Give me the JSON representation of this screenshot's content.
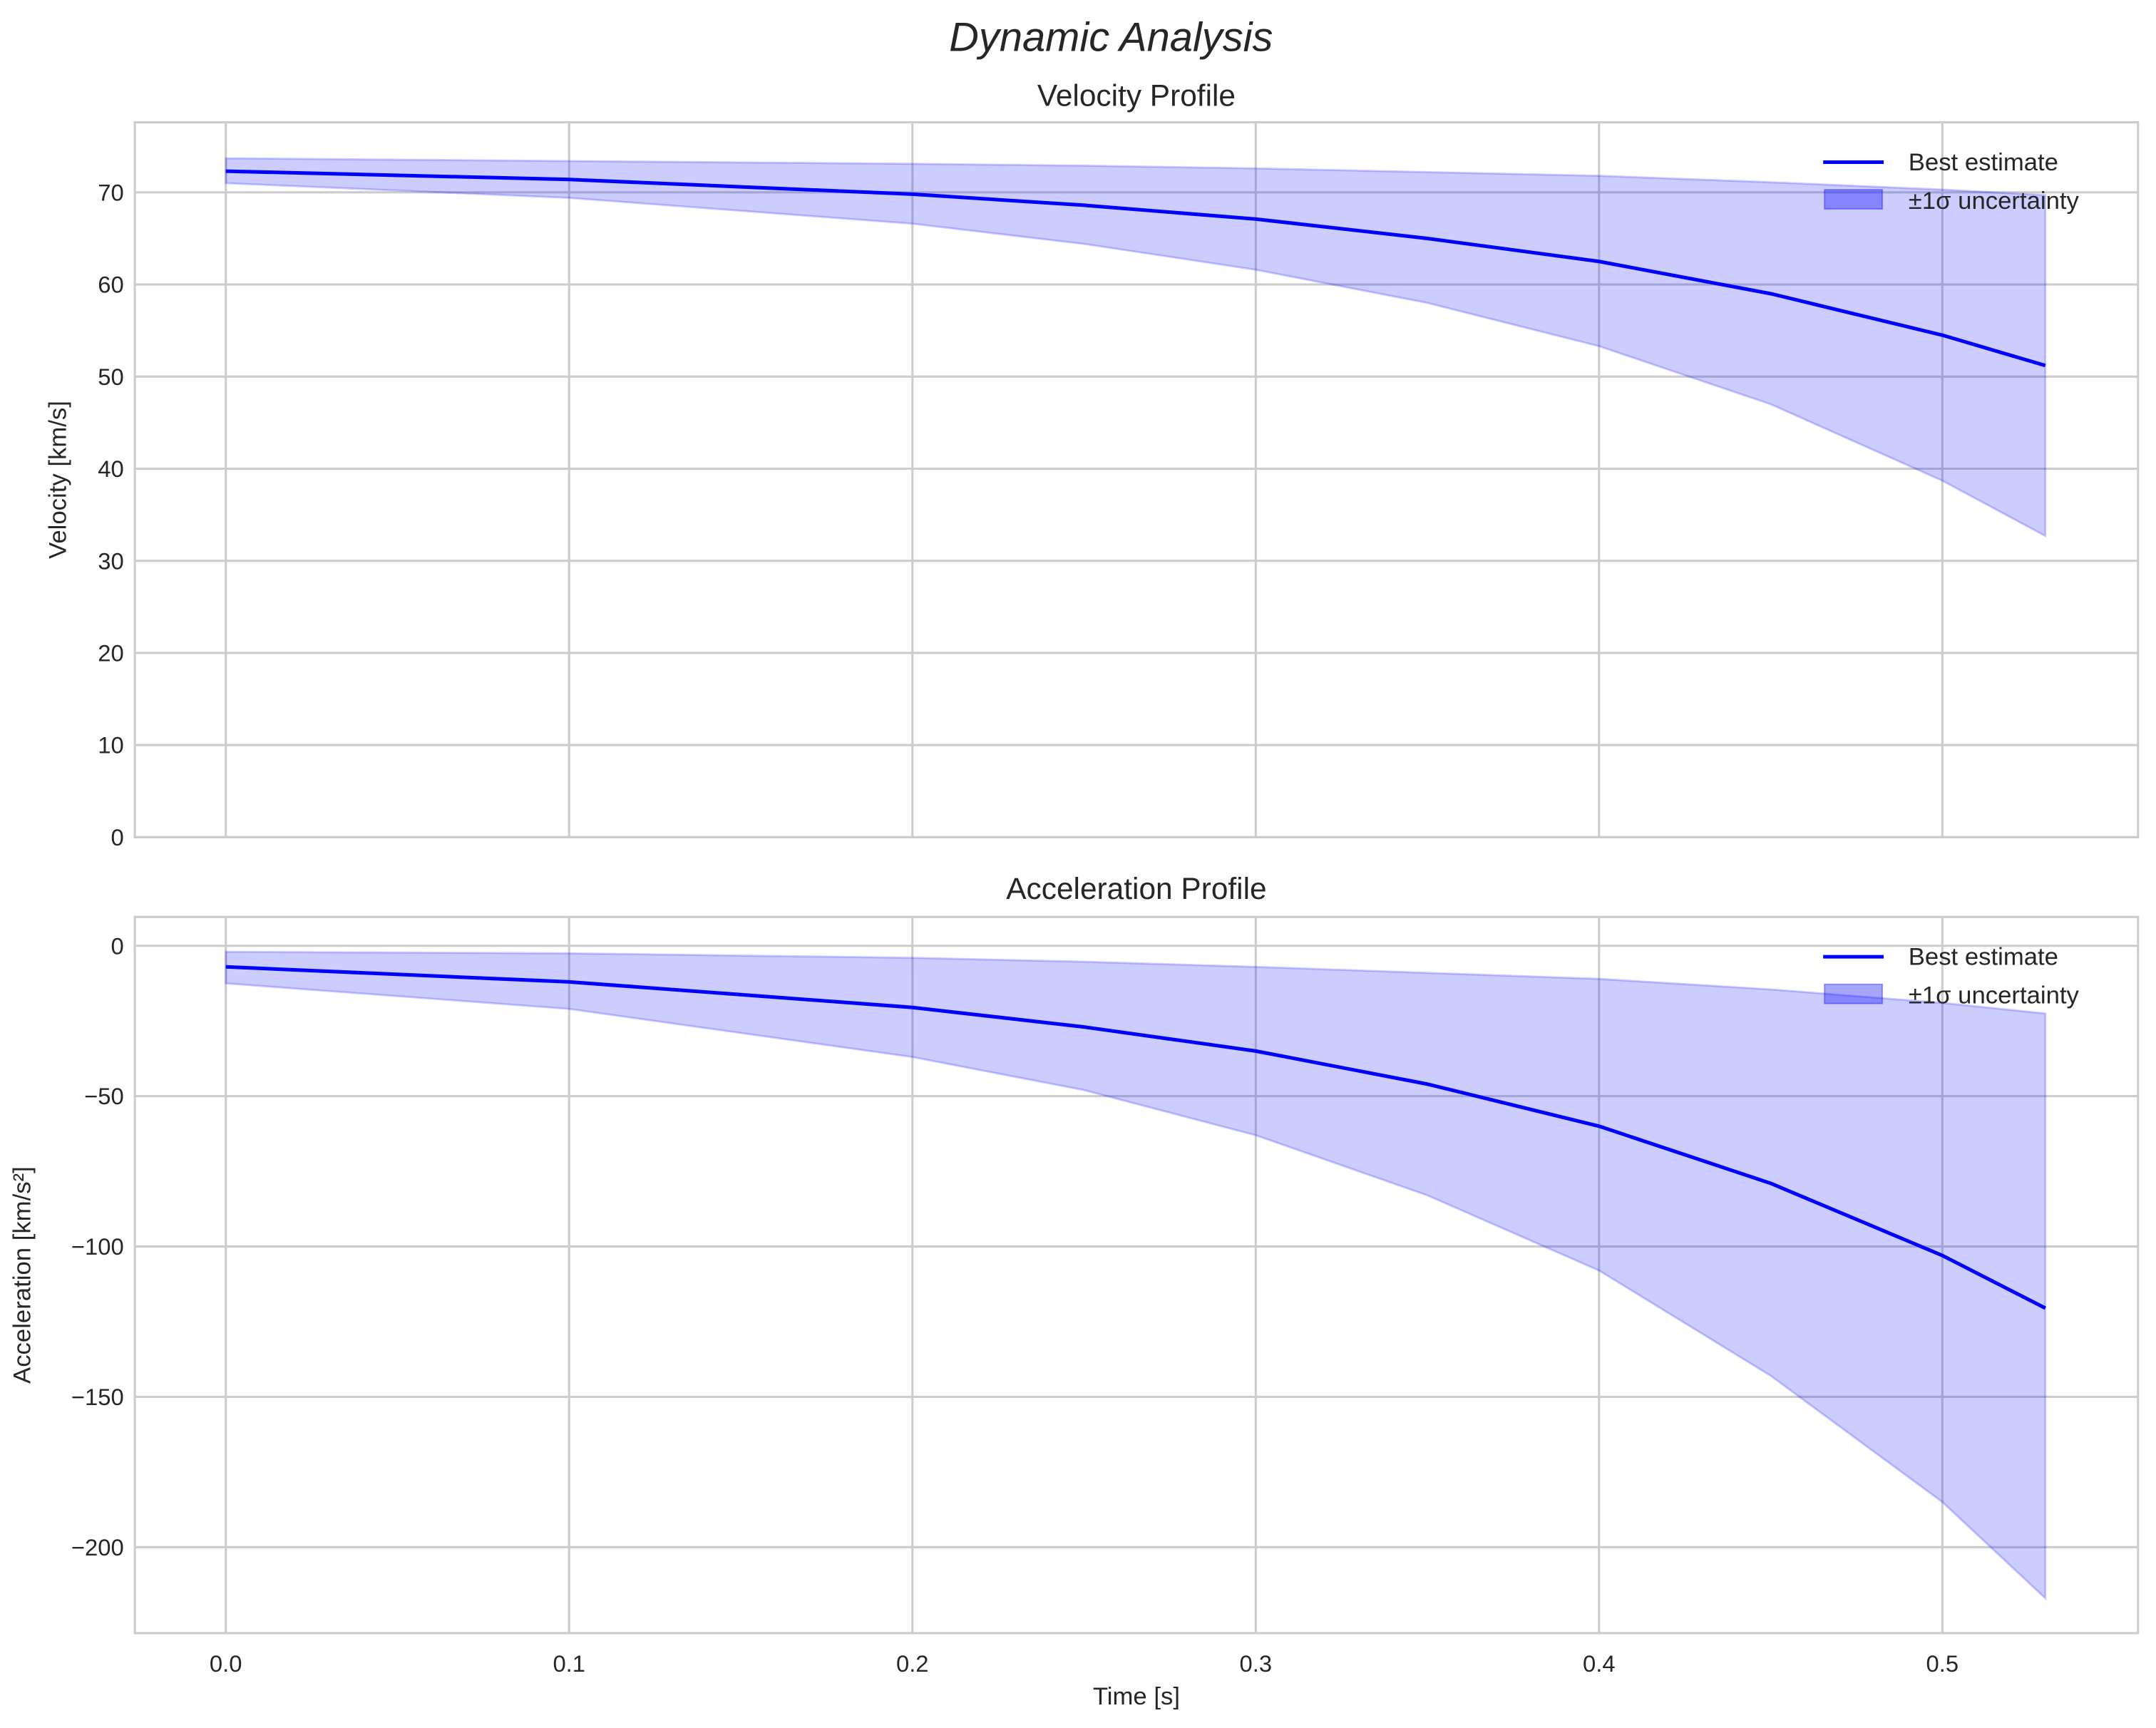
{
  "chart_data": [
    {
      "type": "line",
      "suptitle": "Dynamic Analysis",
      "title": "Velocity Profile",
      "xlabel": "",
      "ylabel": "Velocity [km/s]",
      "xlim": [
        -0.0265,
        0.557
      ],
      "ylim": [
        0,
        77.6
      ],
      "xticks": [
        "0.0",
        "0.1",
        "0.2",
        "0.3",
        "0.4",
        "0.5"
      ],
      "xtick_values": [
        0,
        0.1,
        0.2,
        0.3,
        0.4,
        0.5
      ],
      "yticks": [
        "0",
        "10",
        "20",
        "30",
        "40",
        "50",
        "60",
        "70"
      ],
      "ytick_values": [
        0,
        10,
        20,
        30,
        40,
        50,
        60,
        70
      ],
      "show_xtick_labels": false,
      "grid": true,
      "legend_position": "top-right",
      "x": [
        0,
        0.1,
        0.2,
        0.25,
        0.3,
        0.35,
        0.4,
        0.45,
        0.5,
        0.53
      ],
      "series": [
        {
          "name": "Best estimate",
          "type": "line",
          "color": "#0000ff",
          "values": [
            72.3,
            71.4,
            69.8,
            68.6,
            67.1,
            65.0,
            62.5,
            59.0,
            54.5,
            51.2
          ]
        },
        {
          "name": "±1σ uncertainty",
          "type": "band",
          "color": "#0000ff",
          "upper": [
            73.7,
            73.4,
            73.1,
            72.9,
            72.6,
            72.2,
            71.8,
            71.1,
            70.3,
            69.7
          ],
          "lower": [
            71.0,
            69.4,
            66.6,
            64.4,
            61.6,
            58.0,
            53.3,
            47.0,
            38.7,
            32.7
          ]
        }
      ]
    },
    {
      "type": "line",
      "title": "Acceleration Profile",
      "xlabel": "Time [s]",
      "ylabel": "Acceleration [km/s²]",
      "xlim": [
        -0.0265,
        0.557
      ],
      "ylim": [
        -228.6,
        9.6
      ],
      "xticks": [
        "0.0",
        "0.1",
        "0.2",
        "0.3",
        "0.4",
        "0.5"
      ],
      "xtick_values": [
        0,
        0.1,
        0.2,
        0.3,
        0.4,
        0.5
      ],
      "yticks": [
        "0",
        "−50",
        "−100",
        "−150",
        "−200"
      ],
      "ytick_values": [
        0,
        -50,
        -100,
        -150,
        -200
      ],
      "show_xtick_labels": true,
      "grid": true,
      "legend_position": "top-right",
      "x": [
        0,
        0.1,
        0.2,
        0.25,
        0.3,
        0.35,
        0.4,
        0.45,
        0.5,
        0.53
      ],
      "series": [
        {
          "name": "Best estimate",
          "type": "line",
          "color": "#0000ff",
          "values": [
            -7,
            -12,
            -20.5,
            -27,
            -35,
            -46,
            -60,
            -79,
            -103,
            -120.5
          ]
        },
        {
          "name": "±1σ uncertainty",
          "type": "band",
          "color": "#0000ff",
          "upper": [
            -2,
            -2.5,
            -4,
            -5.3,
            -7,
            -9,
            -11,
            -14.5,
            -19,
            -22.5
          ],
          "lower": [
            -12.5,
            -21,
            -37,
            -48,
            -63,
            -83,
            -108,
            -143,
            -185,
            -217
          ]
        }
      ]
    }
  ]
}
